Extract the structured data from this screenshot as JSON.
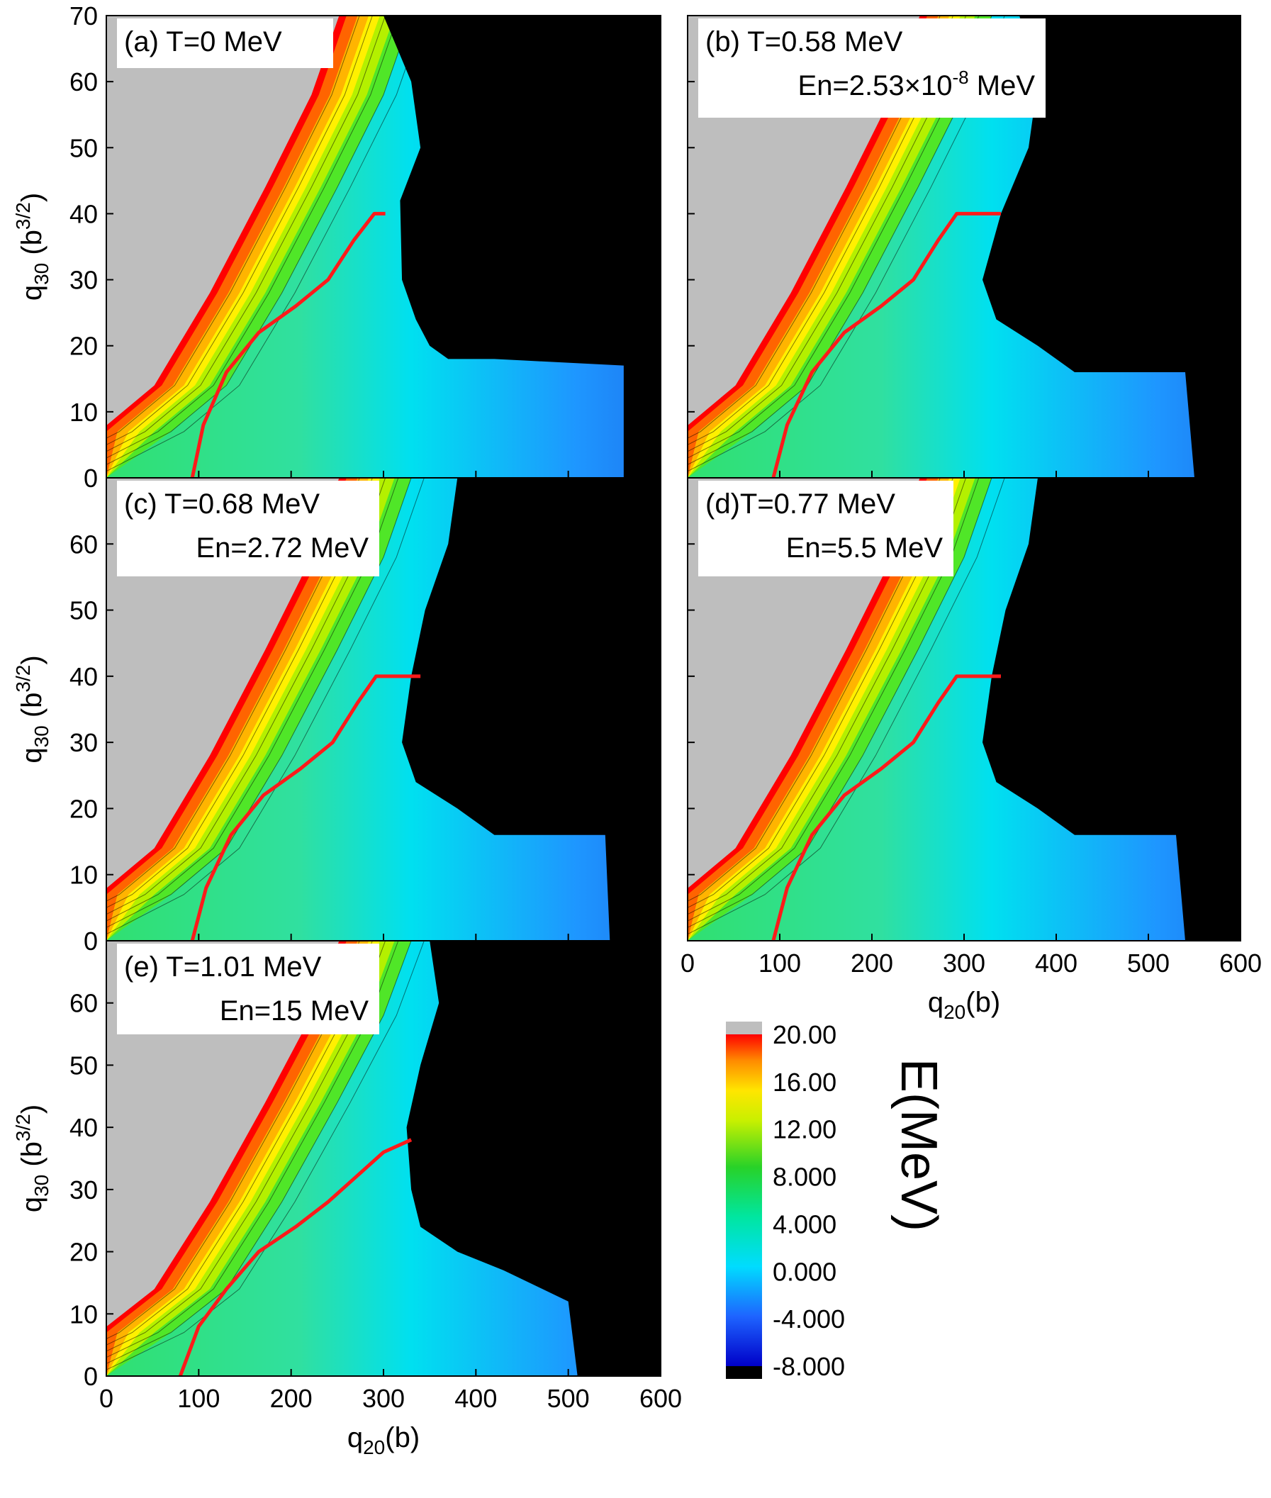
{
  "chart_data": {
    "type": "heatmap",
    "xlabel": "q20(b)",
    "ylabel": "q30 (b3/2)",
    "xlim": [
      0,
      600
    ],
    "ylim": [
      0,
      70
    ],
    "xticks": [
      0,
      100,
      200,
      300,
      400,
      500,
      600
    ],
    "yticks": [
      0,
      10,
      20,
      30,
      40,
      50,
      60,
      70
    ],
    "colorbar": {
      "title": "E(MeV)",
      "range": [
        -8,
        20
      ],
      "tick_labels": [
        "20.00",
        "16.00",
        "12.00",
        "8.000",
        "4.000",
        "0.000",
        "-4.000",
        "-8.000"
      ],
      "tick_values": [
        20,
        16,
        12,
        8,
        4,
        0,
        -4,
        -8
      ],
      "above_max_color": "#bebebe",
      "below_min_color": "#000000"
    },
    "panels": [
      {
        "id": "a",
        "label_line1": "(a) T=0 MeV",
        "label_line2": "",
        "path": [
          [
            93,
            0
          ],
          [
            105,
            8
          ],
          [
            130,
            16
          ],
          [
            165,
            22
          ],
          [
            205,
            26
          ],
          [
            240,
            30
          ],
          [
            268,
            36
          ],
          [
            290,
            40
          ],
          [
            302,
            40
          ]
        ],
        "steep_edge": [
          [
            0,
            7
          ],
          [
            60,
            14
          ],
          [
            120,
            28
          ],
          [
            180,
            44
          ],
          [
            230,
            58
          ],
          [
            260,
            70
          ]
        ],
        "black_edge": [
          [
            300,
            70
          ],
          [
            330,
            60
          ],
          [
            340,
            50
          ],
          [
            318,
            42
          ],
          [
            320,
            30
          ],
          [
            335,
            24
          ],
          [
            350,
            20
          ],
          [
            370,
            18
          ],
          [
            420,
            18
          ],
          [
            560,
            17
          ],
          [
            560,
            0
          ]
        ]
      },
      {
        "id": "b",
        "label_line1": "(b) T=0.58 MeV",
        "label_line2": "En=2.53×10",
        "label_line2_sup": "-8",
        "label_line2_tail": " MeV",
        "path": [
          [
            93,
            0
          ],
          [
            108,
            8
          ],
          [
            135,
            16
          ],
          [
            170,
            22
          ],
          [
            210,
            26
          ],
          [
            245,
            30
          ],
          [
            272,
            36
          ],
          [
            292,
            40
          ],
          [
            340,
            40
          ]
        ],
        "steep_edge": [
          [
            0,
            7
          ],
          [
            60,
            14
          ],
          [
            120,
            28
          ],
          [
            180,
            44
          ],
          [
            230,
            58
          ],
          [
            260,
            70
          ]
        ],
        "black_edge": [
          [
            360,
            70
          ],
          [
            380,
            60
          ],
          [
            370,
            50
          ],
          [
            340,
            40
          ],
          [
            320,
            30
          ],
          [
            335,
            24
          ],
          [
            380,
            20
          ],
          [
            420,
            16
          ],
          [
            540,
            16
          ],
          [
            550,
            0
          ]
        ]
      },
      {
        "id": "c",
        "label_line1": "(c) T=0.68 MeV",
        "label_line2": "En=2.72 MeV",
        "path": [
          [
            93,
            0
          ],
          [
            108,
            8
          ],
          [
            135,
            16
          ],
          [
            170,
            22
          ],
          [
            210,
            26
          ],
          [
            245,
            30
          ],
          [
            272,
            36
          ],
          [
            292,
            40
          ],
          [
            340,
            40
          ]
        ],
        "steep_edge": [
          [
            0,
            7
          ],
          [
            60,
            14
          ],
          [
            120,
            28
          ],
          [
            180,
            44
          ],
          [
            230,
            58
          ],
          [
            260,
            70
          ]
        ],
        "black_edge": [
          [
            380,
            70
          ],
          [
            370,
            60
          ],
          [
            345,
            50
          ],
          [
            330,
            40
          ],
          [
            320,
            30
          ],
          [
            335,
            24
          ],
          [
            380,
            20
          ],
          [
            420,
            16
          ],
          [
            540,
            16
          ],
          [
            545,
            0
          ]
        ]
      },
      {
        "id": "d",
        "label_line1": "(d)T=0.77 MeV",
        "label_line2": "En=5.5 MeV",
        "path": [
          [
            93,
            0
          ],
          [
            108,
            8
          ],
          [
            135,
            16
          ],
          [
            170,
            22
          ],
          [
            210,
            26
          ],
          [
            245,
            30
          ],
          [
            272,
            36
          ],
          [
            292,
            40
          ],
          [
            340,
            40
          ]
        ],
        "steep_edge": [
          [
            0,
            7
          ],
          [
            60,
            14
          ],
          [
            120,
            28
          ],
          [
            180,
            44
          ],
          [
            230,
            58
          ],
          [
            260,
            70
          ]
        ],
        "black_edge": [
          [
            380,
            70
          ],
          [
            370,
            60
          ],
          [
            345,
            50
          ],
          [
            330,
            40
          ],
          [
            320,
            30
          ],
          [
            335,
            24
          ],
          [
            380,
            20
          ],
          [
            420,
            16
          ],
          [
            530,
            16
          ],
          [
            540,
            0
          ]
        ]
      },
      {
        "id": "e",
        "label_line1": "(e) T=1.01 MeV",
        "label_line2": "En=15 MeV",
        "path": [
          [
            80,
            0
          ],
          [
            100,
            8
          ],
          [
            130,
            14
          ],
          [
            165,
            20
          ],
          [
            205,
            24
          ],
          [
            240,
            28
          ],
          [
            270,
            32
          ],
          [
            300,
            36
          ],
          [
            330,
            38
          ]
        ],
        "steep_edge": [
          [
            0,
            7
          ],
          [
            60,
            14
          ],
          [
            120,
            28
          ],
          [
            180,
            44
          ],
          [
            230,
            58
          ],
          [
            260,
            70
          ]
        ],
        "black_edge": [
          [
            350,
            70
          ],
          [
            360,
            60
          ],
          [
            340,
            50
          ],
          [
            325,
            40
          ],
          [
            330,
            30
          ],
          [
            340,
            24
          ],
          [
            380,
            20
          ],
          [
            430,
            17
          ],
          [
            500,
            12
          ],
          [
            510,
            0
          ]
        ]
      }
    ]
  }
}
